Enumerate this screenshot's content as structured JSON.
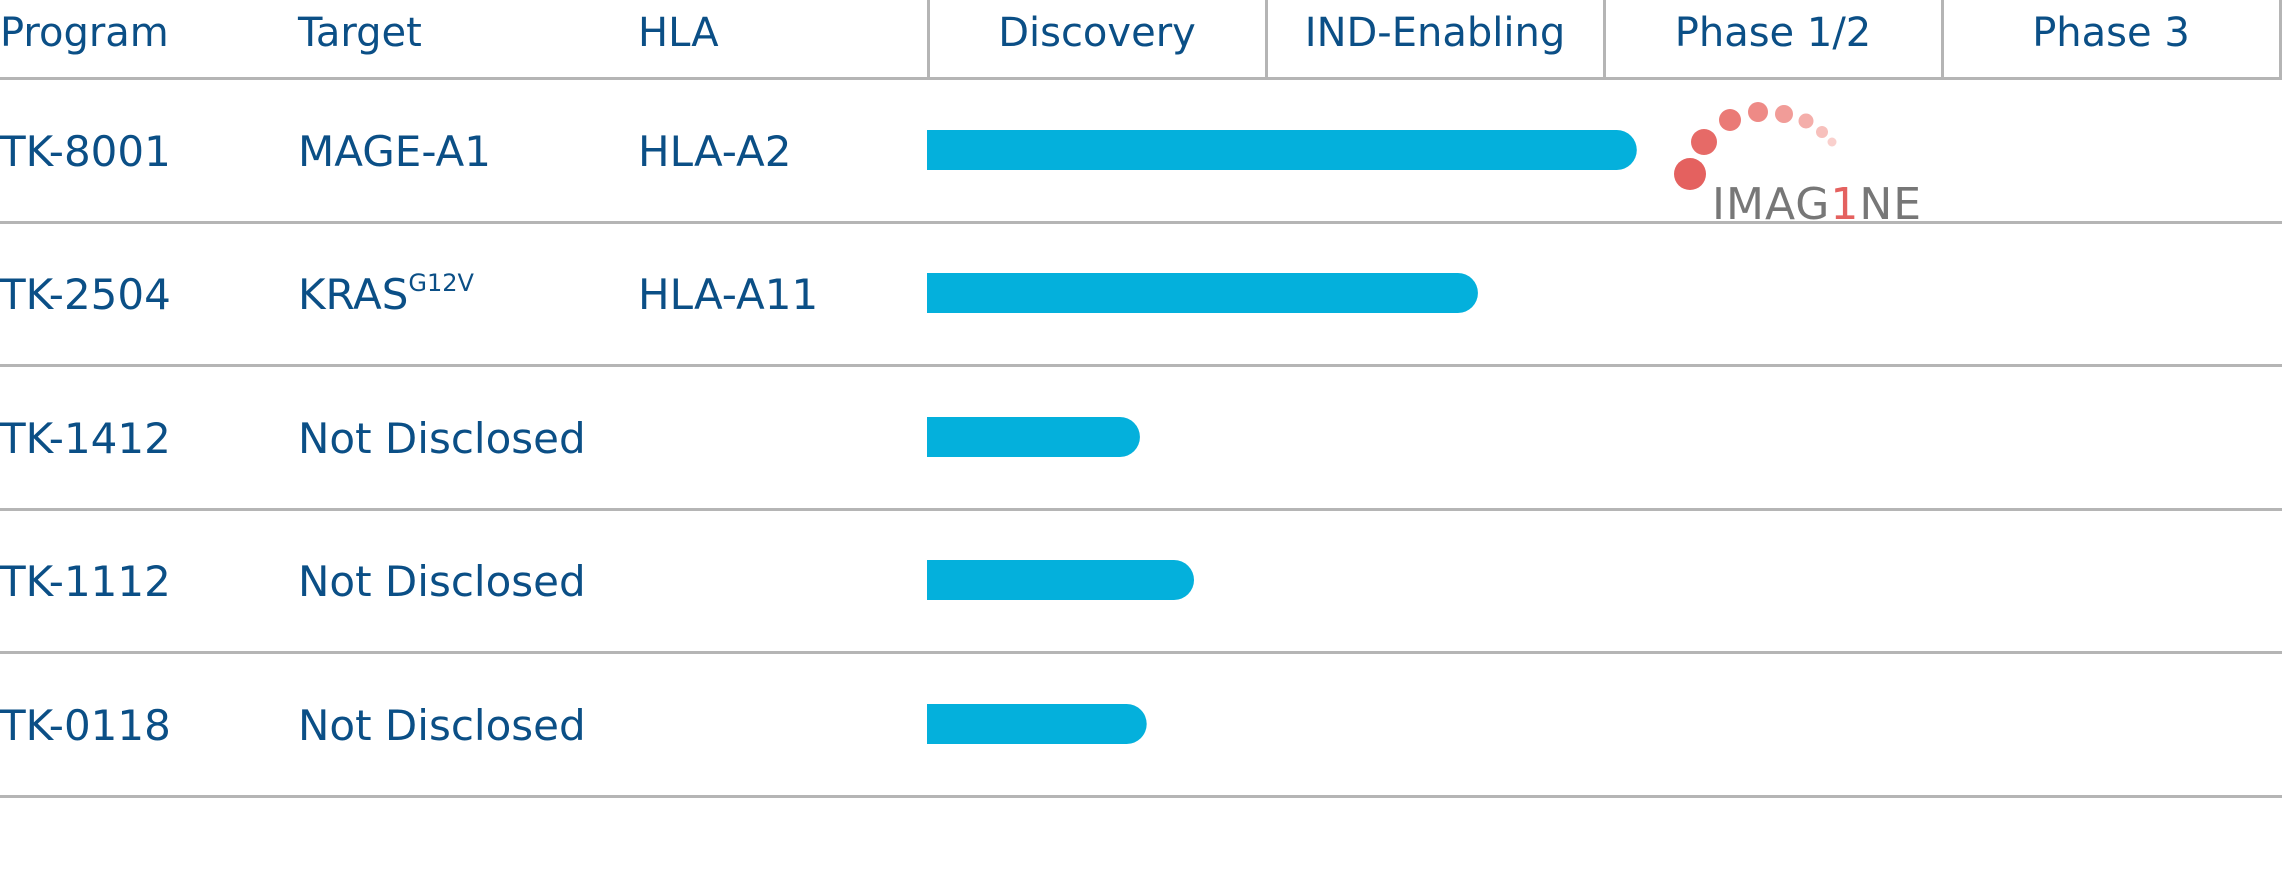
{
  "header": {
    "program_label": "Program",
    "target_label": "Target",
    "hla_label": "HLA"
  },
  "chart_data": {
    "type": "bar",
    "orientation": "horizontal",
    "stage_labels": [
      "Discovery",
      "IND-Enabling",
      "Phase 1/2",
      "Phase 3"
    ],
    "x_unit": "development stage",
    "xlim": [
      0,
      4
    ],
    "bar_color": "#04b0dc",
    "rows": [
      {
        "program": "TK-8001",
        "target": "MAGE-A1",
        "target_sup": "",
        "hla": "HLA-A2",
        "value": 2.1
      },
      {
        "program": "TK-2504",
        "target": "KRAS",
        "target_sup": "G12V",
        "hla": "HLA-A11",
        "value": 1.63
      },
      {
        "program": "TK-1412",
        "target": "Not Disclosed",
        "target_sup": "",
        "hla": "",
        "value": 0.63
      },
      {
        "program": "TK-1112",
        "target": "Not Disclosed",
        "target_sup": "",
        "hla": "",
        "value": 0.79
      },
      {
        "program": "TK-0118",
        "target": "Not Disclosed",
        "target_sup": "",
        "hla": "",
        "value": 0.65
      }
    ]
  },
  "partner_logo": {
    "text_before": "IMAG",
    "text_highlight": "1",
    "text_after": "NE",
    "color_primary": "#e4615f",
    "color_text": "#777777"
  },
  "colors": {
    "text": "#0b4f86",
    "grid": "#b5b5b5",
    "bar": "#04b0dc"
  }
}
